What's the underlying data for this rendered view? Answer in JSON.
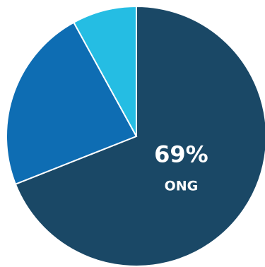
{
  "chart_data": {
    "type": "pie",
    "title": "",
    "start_angle_deg": 0,
    "direction": "clockwise",
    "slices": [
      {
        "label": "ONG",
        "value": 69,
        "display_value": "69%",
        "color": "#1a4866"
      },
      {
        "label": "",
        "value": 23,
        "display_value": "",
        "color": "#0e6db3"
      },
      {
        "label": "",
        "value": 8,
        "display_value": "",
        "color": "#25bde3"
      }
    ]
  }
}
